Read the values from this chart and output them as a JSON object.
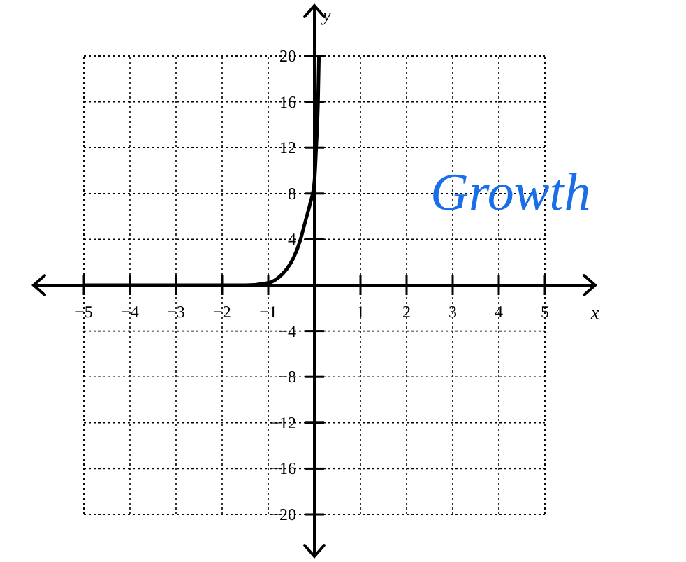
{
  "chart_data": {
    "type": "line",
    "xlabel": "x",
    "ylabel": "y",
    "x": [
      -5,
      -4,
      -3,
      -2,
      -1.5,
      -1,
      -0.8,
      -0.6,
      -0.45,
      -0.3,
      -0.2,
      -0.1,
      0,
      0.04,
      0.08,
      0.1
    ],
    "series": [
      {
        "color": "#000000",
        "values": [
          0,
          0,
          0,
          0,
          0,
          0.2,
          0.6,
          1.4,
          2.4,
          4,
          5.5,
          7,
          9,
          12,
          16,
          20
        ]
      }
    ],
    "xlim": [
      -5,
      5
    ],
    "ylim": [
      -20,
      20
    ],
    "xticks": [
      -5,
      -4,
      -3,
      -2,
      -1,
      1,
      2,
      3,
      4,
      5
    ],
    "yticks": [
      -20,
      -16,
      -12,
      -8,
      -4,
      4,
      8,
      12,
      16,
      20
    ],
    "grid": true,
    "marker": "none",
    "line_style": "solid",
    "annotations": [
      "Growth"
    ]
  }
}
